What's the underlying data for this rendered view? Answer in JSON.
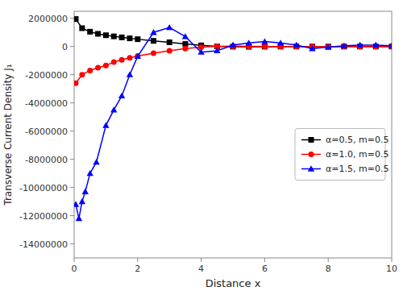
{
  "chart_data": {
    "type": "line",
    "xlabel": "Distance x",
    "ylabel": "Transverse Current Density J₁",
    "xlim": [
      0,
      10
    ],
    "ylim": [
      -15000000,
      2500000
    ],
    "xticks": [
      0,
      2,
      4,
      6,
      8,
      10
    ],
    "yticks": [
      2000000,
      0,
      -2000000,
      -4000000,
      -6000000,
      -8000000,
      -10000000,
      -12000000,
      -14000000
    ],
    "grid": false,
    "legend": "right",
    "series": [
      {
        "name": "α=0.5, m=0.5",
        "color": "#000000",
        "marker": "square",
        "x": [
          0.05,
          0.25,
          0.5,
          0.75,
          1.0,
          1.25,
          1.5,
          1.75,
          2.0,
          2.5,
          3.0,
          3.5,
          4.0,
          4.5,
          5.0,
          5.5,
          6.0,
          6.5,
          7.0,
          7.5,
          8.0,
          8.5,
          9.0,
          9.5,
          10.0
        ],
        "values": [
          1950000,
          1300000,
          1050000,
          900000,
          800000,
          720000,
          650000,
          580000,
          520000,
          400000,
          300000,
          180000,
          80000,
          10000,
          -10000,
          -20000,
          -10000,
          -5000,
          0,
          0,
          0,
          0,
          0,
          0,
          0
        ]
      },
      {
        "name": "α=1.0, m=0.5",
        "color": "#ff0000",
        "marker": "circle",
        "x": [
          0.05,
          0.25,
          0.5,
          0.75,
          1.0,
          1.25,
          1.5,
          1.75,
          2.0,
          2.5,
          3.0,
          3.5,
          4.0,
          4.5,
          5.0,
          5.5,
          6.0,
          6.5,
          7.0,
          7.5,
          8.0,
          8.5,
          9.0,
          9.5,
          10.0
        ],
        "values": [
          -2600000,
          -2000000,
          -1700000,
          -1500000,
          -1350000,
          -1100000,
          -950000,
          -800000,
          -680000,
          -480000,
          -300000,
          -150000,
          -50000,
          10000,
          20000,
          10000,
          5000,
          0,
          0,
          0,
          0,
          0,
          0,
          0,
          0
        ]
      },
      {
        "name": "α=1.5, m=0.5",
        "color": "#0000ff",
        "marker": "triangle",
        "x": [
          0.05,
          0.15,
          0.25,
          0.35,
          0.5,
          0.7,
          1.0,
          1.25,
          1.5,
          1.75,
          2.0,
          2.5,
          3.0,
          3.5,
          4.0,
          4.5,
          5.0,
          5.5,
          6.0,
          6.5,
          7.0,
          7.5,
          8.0,
          8.5,
          9.0,
          9.5,
          10.0
        ],
        "values": [
          -11200000,
          -12200000,
          -11000000,
          -10300000,
          -9000000,
          -8200000,
          -5600000,
          -4500000,
          -3500000,
          -2000000,
          -700000,
          1000000,
          1350000,
          700000,
          -400000,
          -300000,
          100000,
          250000,
          350000,
          250000,
          100000,
          -150000,
          -50000,
          50000,
          100000,
          100000,
          50000
        ]
      }
    ]
  }
}
